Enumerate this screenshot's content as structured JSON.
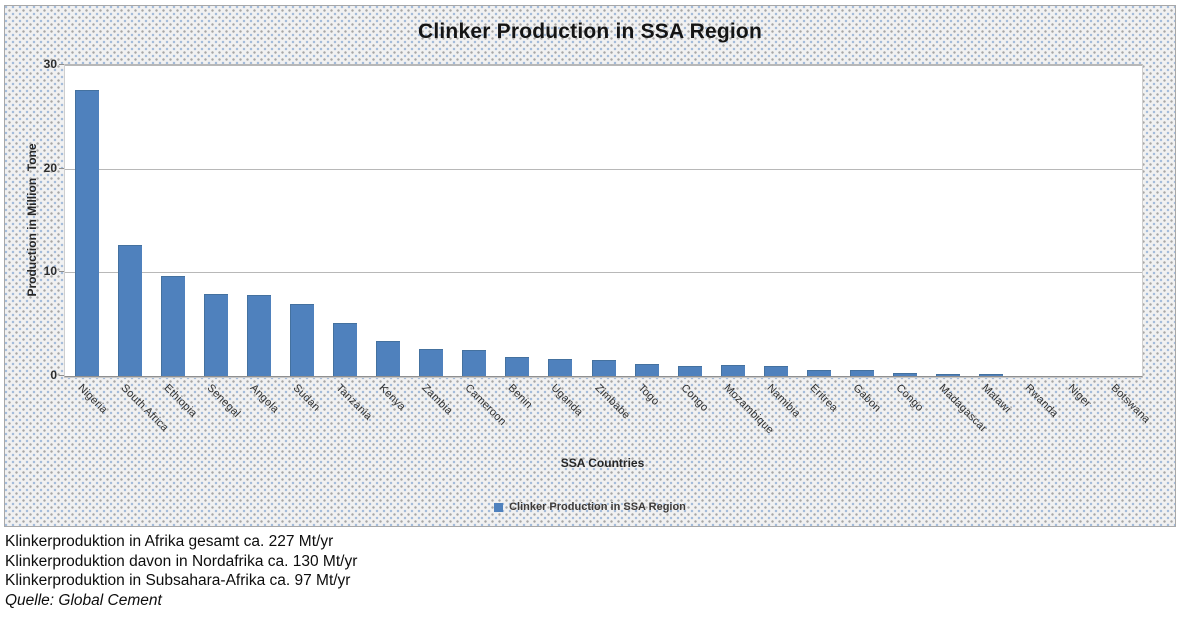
{
  "chart_data": {
    "type": "bar",
    "title": "Clinker Production in SSA Region",
    "xlabel": "SSA Countries",
    "ylabel": "Production in Million  Tone",
    "ylim": [
      0,
      30
    ],
    "yticks": [
      0,
      10,
      20,
      30
    ],
    "grid": true,
    "legend_position": "bottom",
    "legend_label": "Clinker Production in SSA Region",
    "bar_color": "#4f81bd",
    "categories": [
      "Nigeria",
      "South Africa",
      "Ethiopia",
      "Senegal",
      "Angola",
      "Sudan",
      "Tanzania",
      "Kenya",
      "Zambia",
      "Cameroon",
      "Benin",
      "Uganda",
      "Zimbabe",
      "Togo",
      "Congo",
      "Mozambique",
      "Namibia",
      "Eritrea",
      "Gabon",
      "Congo",
      "Madagascar",
      "Malawi",
      "Rwanda",
      "Niger",
      "Botswana"
    ],
    "values": [
      27.6,
      12.6,
      9.6,
      7.9,
      7.8,
      6.9,
      5.1,
      3.4,
      2.6,
      2.5,
      1.8,
      1.6,
      1.5,
      1.2,
      1.0,
      1.05,
      1.0,
      0.55,
      0.6,
      0.3,
      0.16,
      0.22,
      0.03,
      0.02,
      0.02
    ]
  },
  "footer": {
    "lines": [
      "Klinkerproduktion in Afrika gesamt ca. 227 Mt/yr",
      "Klinkerproduktion davon in Nordafrika ca. 130 Mt/yr",
      "Klinkerproduktion in Subsahara-Afrika ca. 97 Mt/yr"
    ],
    "source": "Quelle: Global Cement"
  }
}
